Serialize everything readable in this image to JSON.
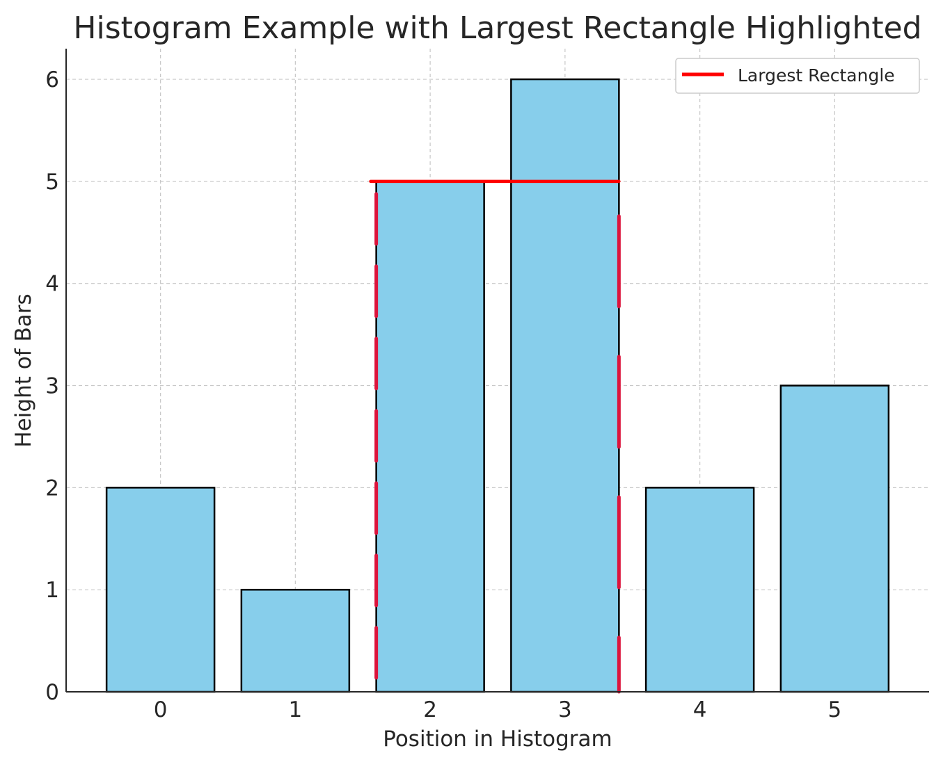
{
  "chart_data": {
    "type": "bar",
    "title": "Histogram Example with Largest Rectangle Highlighted",
    "xlabel": "Position in Histogram",
    "ylabel": "Height of Bars",
    "categories": [
      "0",
      "1",
      "2",
      "3",
      "4",
      "5"
    ],
    "values": [
      2,
      1,
      5,
      6,
      2,
      3
    ],
    "xlim": [
      -0.7,
      5.7
    ],
    "ylim": [
      0,
      6.3
    ],
    "yticks": [
      0,
      1,
      2,
      3,
      4,
      5,
      6
    ],
    "grid": true,
    "bar_color": "#87CEEB",
    "bar_edge_color": "#000000",
    "highlight": {
      "name": "Largest Rectangle",
      "color": "#FF0000",
      "stroke_color": "#DC143C",
      "x_start": 1.6,
      "x_end": 3.4,
      "height": 5
    },
    "legend": {
      "position": "top-right",
      "entries": [
        "Largest Rectangle"
      ]
    }
  }
}
